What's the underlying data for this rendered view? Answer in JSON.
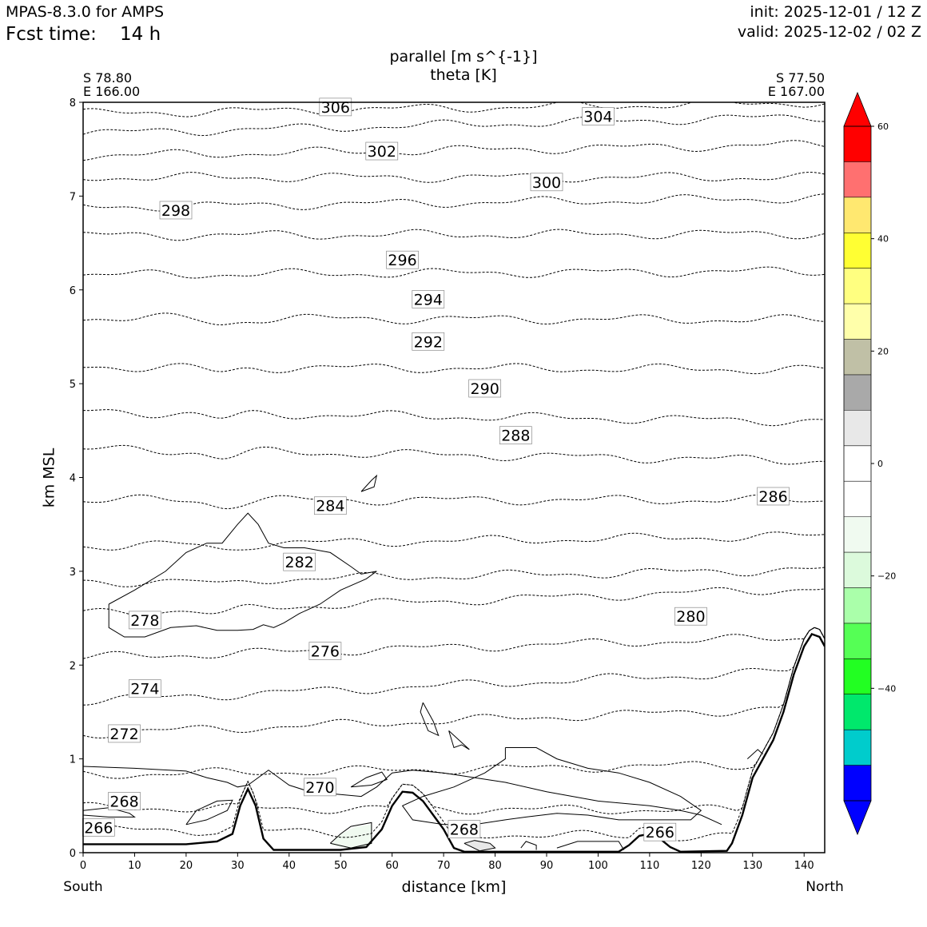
{
  "header": {
    "model": "MPAS-8.3.0 for AMPS",
    "fcst_label": "Fcst time:",
    "fcst_value": "14 h",
    "init": "init: 2025-12-01 / 12 Z",
    "valid": "valid: 2025-12-02 / 02 Z"
  },
  "chart_data": {
    "type": "cross-section",
    "title_line1": "parallel [m s^{-1}]",
    "title_line2": "theta [K]",
    "xlabel": "distance [km]",
    "ylabel": "km MSL",
    "xlim": [
      0,
      144
    ],
    "ylim": [
      0,
      8
    ],
    "x_ticks": [
      0,
      10,
      20,
      30,
      40,
      50,
      60,
      70,
      80,
      90,
      100,
      110,
      120,
      130,
      140
    ],
    "y_ticks": [
      0,
      1,
      2,
      3,
      4,
      5,
      6,
      7,
      8
    ],
    "left_end": {
      "lat": "S 78.80",
      "lon": "E 166.00",
      "dir": "South"
    },
    "right_end": {
      "lat": "S 77.50",
      "lon": "E 167.00",
      "dir": "North"
    },
    "terrain": [
      [
        0,
        0.09
      ],
      [
        20,
        0.09
      ],
      [
        26,
        0.12
      ],
      [
        29,
        0.2
      ],
      [
        30.5,
        0.5
      ],
      [
        32,
        0.68
      ],
      [
        33.5,
        0.5
      ],
      [
        35,
        0.15
      ],
      [
        37,
        0.03
      ],
      [
        50,
        0.03
      ],
      [
        55,
        0.06
      ],
      [
        58,
        0.25
      ],
      [
        60,
        0.5
      ],
      [
        62,
        0.65
      ],
      [
        64,
        0.64
      ],
      [
        66,
        0.55
      ],
      [
        68,
        0.4
      ],
      [
        70,
        0.25
      ],
      [
        72,
        0.05
      ],
      [
        74,
        0.01
      ],
      [
        104,
        0.01
      ],
      [
        106,
        0.08
      ],
      [
        108,
        0.18
      ],
      [
        110,
        0.2
      ],
      [
        112,
        0.15
      ],
      [
        114,
        0.06
      ],
      [
        116,
        0.01
      ],
      [
        125,
        0.02
      ],
      [
        126,
        0.1
      ],
      [
        128,
        0.4
      ],
      [
        130,
        0.8
      ],
      [
        132,
        1.0
      ],
      [
        134,
        1.2
      ],
      [
        136,
        1.5
      ],
      [
        138,
        1.9
      ],
      [
        140,
        2.2
      ],
      [
        141.5,
        2.33
      ],
      [
        143,
        2.3
      ],
      [
        144,
        2.2
      ]
    ],
    "theta_levels": [
      {
        "label": "266",
        "y0": 0.25,
        "y1": 0.15,
        "lx": 3,
        "ly": 0.27,
        "rx": 112,
        "ry": 0.22
      },
      {
        "label": "268",
        "y0": 0.48,
        "y1": 0.45,
        "lx": 8,
        "ly": 0.55,
        "rx": 74,
        "ry": 0.25
      },
      {
        "label": "270",
        "y0": 0.83,
        "y1": 0.95,
        "lx": 46,
        "ly": 0.7
      },
      {
        "label": "272",
        "y0": 1.27,
        "y1": 1.55,
        "lx": 8,
        "ly": 1.27
      },
      {
        "label": "274",
        "y0": 1.62,
        "y1": 1.95,
        "lx": 12,
        "ly": 1.75
      },
      {
        "label": "276",
        "y0": 2.08,
        "y1": 2.3,
        "lx": 47,
        "ly": 2.15
      },
      {
        "label": "278",
        "y0": 2.55,
        "y1": 2.82,
        "lx": 12,
        "ly": 2.48
      },
      {
        "label": "280",
        "y0": 2.88,
        "y1": 3.02,
        "lx": 118,
        "ly": 2.52
      },
      {
        "label": "282",
        "y0": 3.27,
        "y1": 3.38,
        "lx": 42,
        "ly": 3.1
      },
      {
        "label": "284",
        "y0": 3.76,
        "y1": 3.76,
        "lx": 48,
        "ly": 3.7
      },
      {
        "label": "286",
        "y0": 4.3,
        "y1": 4.18,
        "lx": 134,
        "ly": 3.8
      },
      {
        "label": "288",
        "y0": 4.7,
        "y1": 4.6,
        "lx": 84,
        "ly": 4.45
      },
      {
        "label": "290",
        "y0": 5.18,
        "y1": 5.15,
        "lx": 78,
        "ly": 4.95
      },
      {
        "label": "292",
        "y0": 5.7,
        "y1": 5.68,
        "lx": 67,
        "ly": 5.45
      },
      {
        "label": "294",
        "y0": 6.16,
        "y1": 6.2,
        "lx": 67,
        "ly": 5.9
      },
      {
        "label": "296",
        "y0": 6.58,
        "y1": 6.6,
        "lx": 62,
        "ly": 6.32
      },
      {
        "label": "298",
        "y0": 6.88,
        "y1": 6.98,
        "lx": 18,
        "ly": 6.85
      },
      {
        "label": "300",
        "y0": 7.2,
        "y1": 7.2,
        "lx": 90,
        "ly": 7.15
      },
      {
        "label": "302",
        "y0": 7.43,
        "y1": 7.55,
        "lx": 58,
        "ly": 7.48
      },
      {
        "label": "304",
        "y0": 7.67,
        "y1": 7.85,
        "lx": 100,
        "ly": 7.85
      },
      {
        "label": "306",
        "y0": 7.88,
        "y1": 8.0,
        "lx": 49,
        "ly": 7.95
      }
    ],
    "wind_contours": [
      [
        [
          5,
          2.65
        ],
        [
          10,
          2.8
        ],
        [
          16,
          3.0
        ],
        [
          20,
          3.2
        ],
        [
          24,
          3.3
        ],
        [
          27,
          3.3
        ],
        [
          30,
          3.5
        ],
        [
          32,
          3.62
        ],
        [
          34,
          3.5
        ],
        [
          36,
          3.3
        ],
        [
          39,
          3.25
        ],
        [
          43,
          3.25
        ],
        [
          48,
          3.2
        ],
        [
          52,
          3.05
        ],
        [
          54,
          2.97
        ],
        [
          57,
          3.0
        ],
        [
          55,
          2.92
        ],
        [
          50,
          2.8
        ],
        [
          46,
          2.65
        ],
        [
          42,
          2.55
        ],
        [
          39,
          2.45
        ],
        [
          37,
          2.4
        ],
        [
          35,
          2.43
        ],
        [
          33,
          2.38
        ],
        [
          30,
          2.37
        ],
        [
          26,
          2.37
        ],
        [
          22,
          2.42
        ],
        [
          17,
          2.4
        ],
        [
          12,
          2.3
        ],
        [
          8,
          2.3
        ],
        [
          5,
          2.4
        ],
        [
          5,
          2.65
        ]
      ],
      [
        [
          54,
          3.85
        ],
        [
          56,
          3.97
        ],
        [
          57,
          4.02
        ],
        [
          56.5,
          3.9
        ],
        [
          54,
          3.85
        ]
      ],
      [
        [
          0,
          0.92
        ],
        [
          10,
          0.9
        ],
        [
          20,
          0.87
        ],
        [
          24,
          0.8
        ],
        [
          28,
          0.75
        ],
        [
          30,
          0.7
        ],
        [
          32,
          0.72
        ],
        [
          34,
          0.8
        ],
        [
          36,
          0.88
        ],
        [
          38,
          0.8
        ],
        [
          40,
          0.72
        ],
        [
          44,
          0.65
        ],
        [
          50,
          0.62
        ],
        [
          54,
          0.6
        ],
        [
          57,
          0.7
        ],
        [
          60,
          0.85
        ],
        [
          64,
          0.88
        ],
        [
          70,
          0.85
        ],
        [
          76,
          0.8
        ],
        [
          82,
          0.75
        ],
        [
          90,
          0.65
        ],
        [
          100,
          0.55
        ],
        [
          110,
          0.5
        ],
        [
          116,
          0.45
        ],
        [
          120,
          0.4
        ],
        [
          124,
          0.3
        ]
      ],
      [
        [
          20,
          0.3
        ],
        [
          22,
          0.45
        ],
        [
          26,
          0.55
        ],
        [
          29,
          0.56
        ],
        [
          28,
          0.45
        ],
        [
          24,
          0.35
        ],
        [
          20,
          0.3
        ]
      ],
      [
        [
          0,
          0.45
        ],
        [
          5,
          0.48
        ],
        [
          9,
          0.42
        ],
        [
          10,
          0.38
        ],
        [
          5,
          0.38
        ],
        [
          0,
          0.4
        ]
      ],
      [
        [
          66,
          1.6
        ],
        [
          68,
          1.4
        ],
        [
          69,
          1.25
        ],
        [
          67,
          1.3
        ],
        [
          65.5,
          1.5
        ],
        [
          66,
          1.6
        ]
      ],
      [
        [
          71,
          1.3
        ],
        [
          73,
          1.2
        ],
        [
          75,
          1.1
        ],
        [
          73.5,
          1.15
        ],
        [
          72,
          1.12
        ],
        [
          71,
          1.3
        ]
      ],
      [
        [
          82,
          1.12
        ],
        [
          88,
          1.12
        ],
        [
          92,
          1.0
        ],
        [
          98,
          0.9
        ],
        [
          104,
          0.85
        ],
        [
          110,
          0.75
        ],
        [
          116,
          0.6
        ],
        [
          120,
          0.45
        ],
        [
          118,
          0.35
        ],
        [
          112,
          0.35
        ],
        [
          104,
          0.35
        ],
        [
          98,
          0.4
        ],
        [
          92,
          0.42
        ],
        [
          86,
          0.38
        ],
        [
          82,
          0.35
        ],
        [
          76,
          0.3
        ],
        [
          70,
          0.3
        ],
        [
          64,
          0.35
        ],
        [
          62,
          0.5
        ],
        [
          66,
          0.6
        ],
        [
          72,
          0.7
        ],
        [
          78,
          0.85
        ],
        [
          82,
          1.0
        ],
        [
          82,
          1.12
        ]
      ],
      [
        [
          52,
          0.7
        ],
        [
          55,
          0.8
        ],
        [
          58,
          0.86
        ],
        [
          59,
          0.78
        ],
        [
          56,
          0.72
        ],
        [
          52,
          0.7
        ]
      ],
      [
        [
          48,
          0.1
        ],
        [
          50,
          0.2
        ],
        [
          52,
          0.28
        ],
        [
          56,
          0.32
        ],
        [
          56,
          0.1
        ],
        [
          52,
          0.05
        ],
        [
          48,
          0.1
        ]
      ],
      [
        [
          74,
          0.1
        ],
        [
          76,
          0.13
        ],
        [
          79,
          0.1
        ],
        [
          80,
          0.05
        ],
        [
          77,
          0.02
        ],
        [
          74,
          0.1
        ]
      ],
      [
        [
          85,
          0.05
        ],
        [
          86,
          0.12
        ],
        [
          88,
          0.08
        ],
        [
          88,
          0.03
        ]
      ],
      [
        [
          92,
          0.05
        ],
        [
          96,
          0.12
        ],
        [
          104,
          0.12
        ],
        [
          105,
          0.03
        ]
      ],
      [
        [
          129,
          1.0
        ],
        [
          131,
          1.1
        ],
        [
          132,
          1.05
        ]
      ]
    ],
    "wind_shaded": [
      {
        "pts": [
          [
            48,
            0.08
          ],
          [
            50,
            0.2
          ],
          [
            53,
            0.28
          ],
          [
            56,
            0.3
          ],
          [
            56,
            0.08
          ],
          [
            52,
            0.04
          ],
          [
            48,
            0.08
          ]
        ],
        "color": "#f0faf0"
      },
      {
        "pts": [
          [
            74,
            0.1
          ],
          [
            76,
            0.13
          ],
          [
            79,
            0.1
          ],
          [
            80,
            0.05
          ],
          [
            77,
            0.02
          ],
          [
            74,
            0.1
          ]
        ],
        "color": "#e8e8e8"
      }
    ],
    "colorbar": {
      "bounds": [
        -60,
        60
      ],
      "tick_labels": [
        "60",
        "40",
        "20",
        "0",
        "−20",
        "−40"
      ],
      "tick_values": [
        60,
        40,
        20,
        0,
        -20,
        -40
      ],
      "over_color": "#ff0000",
      "under_color": "#0000ff",
      "colors_top_to_bottom": [
        "#ff0000",
        "#ff7070",
        "#ffe870",
        "#ffff33",
        "#ffff80",
        "#ffffaa",
        "#c0c0a6",
        "#a9a9a9",
        "#e8e8e8",
        "#ffffff",
        "#ffffff",
        "#f0faf0",
        "#dcfadc",
        "#aaffaa",
        "#55ff55",
        "#22ff22",
        "#00e86c",
        "#00cccc",
        "#0000ff"
      ]
    }
  }
}
